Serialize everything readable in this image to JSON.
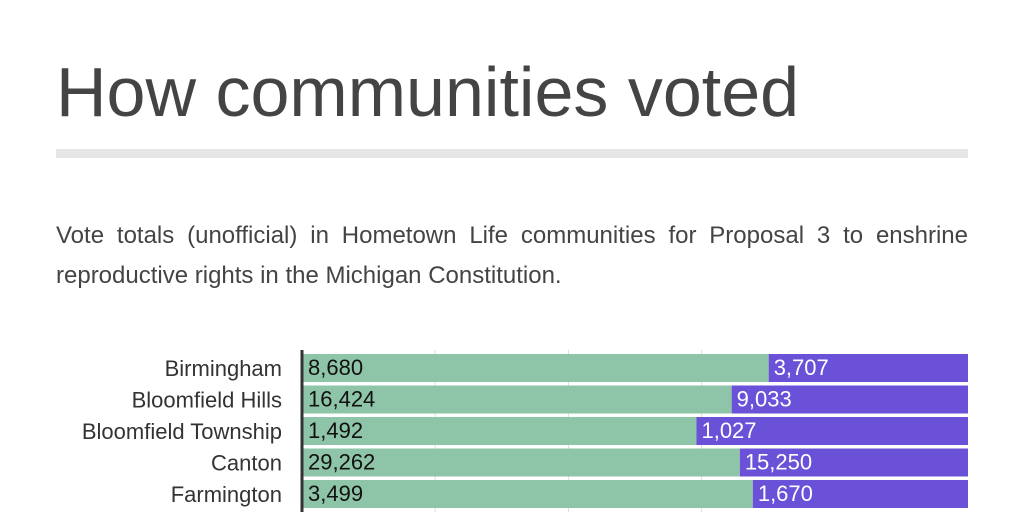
{
  "header": {
    "title": "How communities voted",
    "subtitle": "Vote totals (unofficial) in Hometown Life communities for Proposal 3 to enshrine reproductive rights in the Michigan Constitution."
  },
  "colors": {
    "yes": "#8ec4a7",
    "no": "#6a51d8",
    "axis": "#333333",
    "grid": "#dddddd"
  },
  "chart_data": {
    "type": "bar",
    "orientation": "horizontal",
    "stacked": "percent",
    "categories": [
      "Birmingham",
      "Bloomfield Hills",
      "Bloomfield Township",
      "Canton",
      "Farmington"
    ],
    "series": [
      {
        "values": [
          8680,
          16424,
          1492,
          29262,
          3499
        ]
      },
      {
        "values": [
          3707,
          9033,
          1027,
          15250,
          1670
        ]
      }
    ],
    "value_labels": {
      "yes": [
        "8,680",
        "16,424",
        "1,492",
        "29,262",
        "3,499"
      ],
      "no": [
        "3,707",
        "9,033",
        "1,027",
        "15,250",
        "1,670"
      ]
    },
    "grid": true,
    "gridlines_fraction": [
      0.2,
      0.4,
      0.6
    ],
    "legend": "none"
  }
}
